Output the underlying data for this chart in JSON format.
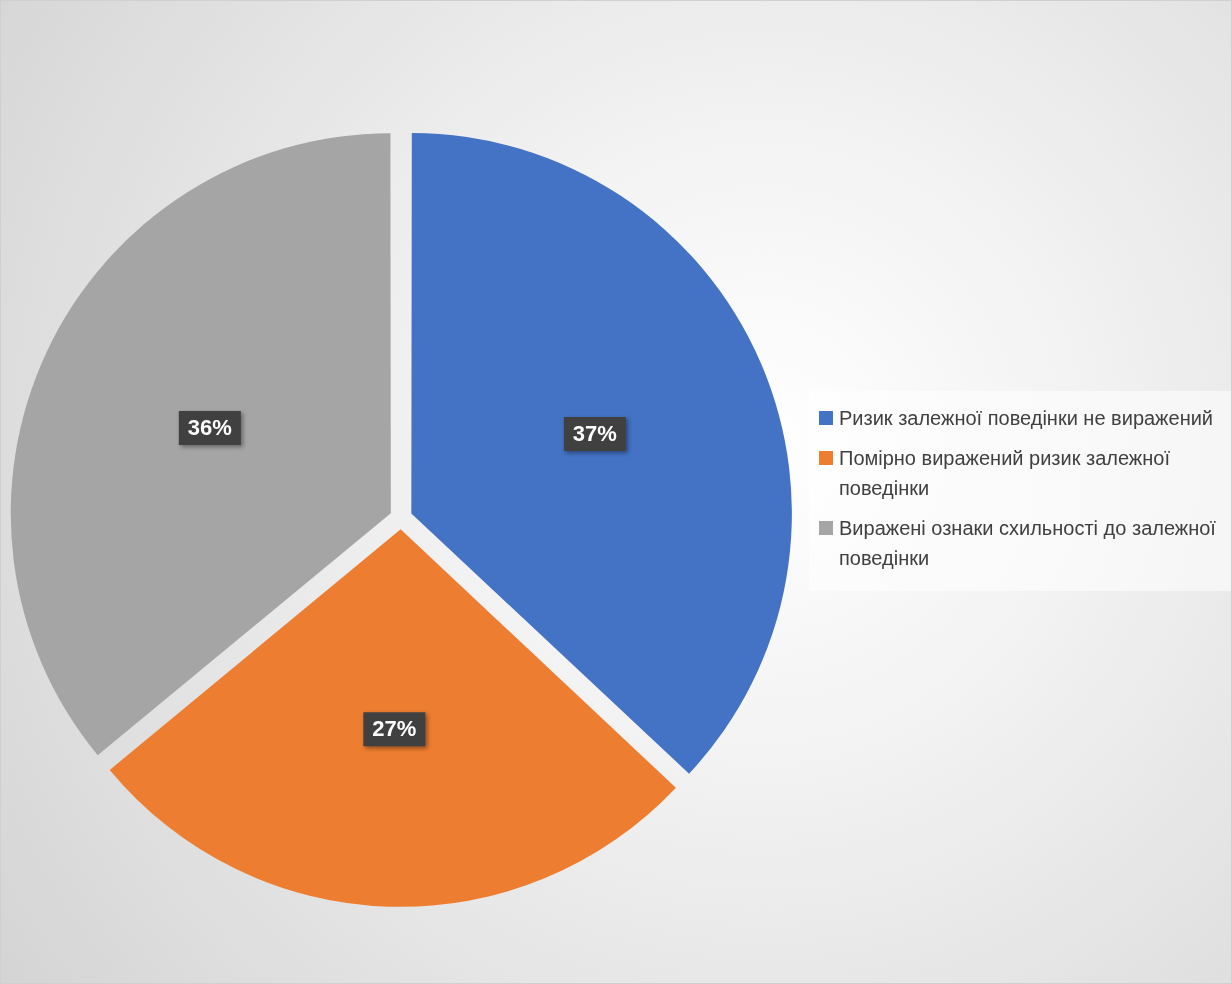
{
  "chart_data": {
    "type": "pie",
    "categories": [
      "Ризик залежної поведінки не виражений",
      "Помірно виражений ризик залежної поведінки",
      "Виражені ознаки схильності до залежної поведінки"
    ],
    "values": [
      37,
      27,
      36
    ],
    "colors": [
      "#4472c4",
      "#ed7d31",
      "#a5a5a5"
    ],
    "value_labels": [
      "37%",
      "27%",
      "36%"
    ],
    "legend": "right"
  }
}
